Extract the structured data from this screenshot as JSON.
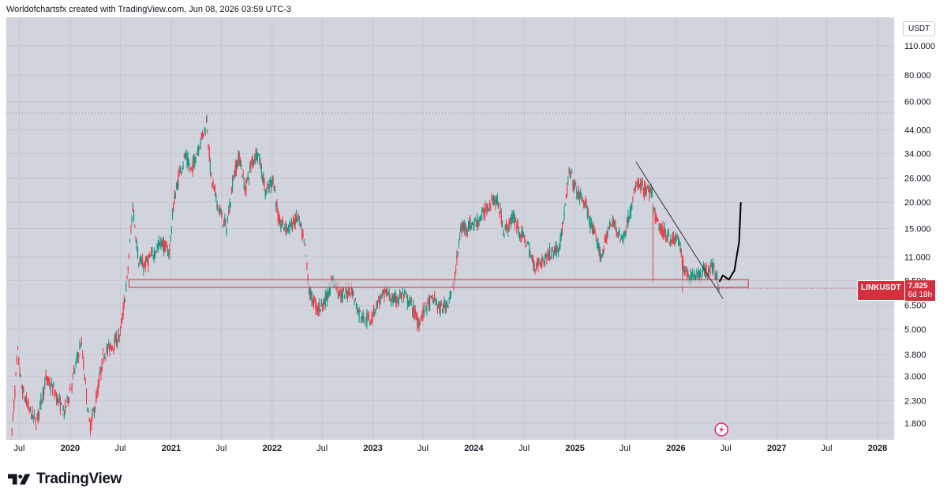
{
  "header": {
    "caption": "Worldofchartsfx created with TradingView.com, Jun 08, 2026 03:59 UTC-3"
  },
  "footer": {
    "brand": "TradingView",
    "logo_icon": "tradingview-logo-icon"
  },
  "price_scale": {
    "currency": "USDT"
  },
  "price_tag": {
    "symbol": "LINKUSDT",
    "price": "7.825",
    "countdown": "6d 18h"
  },
  "colors": {
    "plot_bg": "#d1d4dc",
    "up": "#089981",
    "down": "#f23645",
    "zone_fill": "#cbd0da",
    "zone_border": "#d32f3f",
    "trendline": "#333333",
    "projection": "#000000",
    "tag": "#d32f3f"
  },
  "chart_data": {
    "type": "candlestick",
    "symbol": "LINKUSDT",
    "scale": "log",
    "ylim": [
      1.5,
      150
    ],
    "xlim": [
      "2019-05-15",
      "2028-03-01"
    ],
    "y_ticks": [
      "110.000",
      "80.000",
      "60.000",
      "44.000",
      "34.000",
      "26.000",
      "20.000",
      "15.000",
      "11.000",
      "8.500",
      "6.500",
      "5.000",
      "3.800",
      "3.000",
      "2.300",
      "1.800"
    ],
    "x_ticks": [
      {
        "label": "Jul",
        "date": "2019-07-01"
      },
      {
        "label": "2020",
        "date": "2020-01-01"
      },
      {
        "label": "Jul",
        "date": "2020-07-01"
      },
      {
        "label": "2021",
        "date": "2021-01-01"
      },
      {
        "label": "Jul",
        "date": "2021-07-01"
      },
      {
        "label": "2022",
        "date": "2022-01-01"
      },
      {
        "label": "Jul",
        "date": "2022-07-01"
      },
      {
        "label": "2023",
        "date": "2023-01-01"
      },
      {
        "label": "Jul",
        "date": "2023-07-01"
      },
      {
        "label": "2024",
        "date": "2024-01-01"
      },
      {
        "label": "Jul",
        "date": "2024-07-01"
      },
      {
        "label": "2025",
        "date": "2025-01-01"
      },
      {
        "label": "Jul",
        "date": "2025-07-01"
      },
      {
        "label": "2026",
        "date": "2026-01-01"
      },
      {
        "label": "Jul",
        "date": "2026-07-01"
      },
      {
        "label": "2027",
        "date": "2027-01-01"
      },
      {
        "label": "Jul",
        "date": "2027-07-01"
      },
      {
        "label": "2028",
        "date": "2028-01-01"
      }
    ],
    "price_path": [
      [
        "2019-06-01",
        1.4
      ],
      [
        "2019-06-25",
        3.9
      ],
      [
        "2019-07-10",
        2.6
      ],
      [
        "2019-08-05",
        2.1
      ],
      [
        "2019-09-01",
        1.8
      ],
      [
        "2019-10-05",
        2.9
      ],
      [
        "2019-11-01",
        2.6
      ],
      [
        "2019-12-10",
        2.0
      ],
      [
        "2020-01-05",
        2.7
      ],
      [
        "2020-02-10",
        4.4
      ],
      [
        "2020-03-12",
        1.7
      ],
      [
        "2020-04-01",
        2.2
      ],
      [
        "2020-05-01",
        3.8
      ],
      [
        "2020-06-15",
        4.4
      ],
      [
        "2020-07-01",
        4.8
      ],
      [
        "2020-07-25",
        8.5
      ],
      [
        "2020-08-15",
        19.0
      ],
      [
        "2020-09-05",
        10.5
      ],
      [
        "2020-09-25",
        10.0
      ],
      [
        "2020-10-20",
        11.0
      ],
      [
        "2020-11-25",
        13.0
      ],
      [
        "2020-12-25",
        11.5
      ],
      [
        "2021-01-10",
        20.0
      ],
      [
        "2021-02-01",
        28.0
      ],
      [
        "2021-02-20",
        33.0
      ],
      [
        "2021-03-15",
        28.0
      ],
      [
        "2021-04-05",
        35.0
      ],
      [
        "2021-05-10",
        48.0
      ],
      [
        "2021-05-25",
        26.0
      ],
      [
        "2021-06-25",
        18.0
      ],
      [
        "2021-07-20",
        15.0
      ],
      [
        "2021-08-15",
        27.0
      ],
      [
        "2021-09-05",
        33.0
      ],
      [
        "2021-09-25",
        23.0
      ],
      [
        "2021-10-20",
        31.0
      ],
      [
        "2021-11-10",
        35.0
      ],
      [
        "2021-12-10",
        22.0
      ],
      [
        "2022-01-05",
        26.0
      ],
      [
        "2022-01-25",
        16.0
      ],
      [
        "2022-03-01",
        15.0
      ],
      [
        "2022-04-05",
        17.0
      ],
      [
        "2022-05-01",
        12.0
      ],
      [
        "2022-05-15",
        7.5
      ],
      [
        "2022-06-15",
        6.2
      ],
      [
        "2022-07-15",
        7.0
      ],
      [
        "2022-08-10",
        8.5
      ],
      [
        "2022-09-10",
        7.2
      ],
      [
        "2022-10-15",
        7.8
      ],
      [
        "2022-11-10",
        6.0
      ],
      [
        "2022-12-20",
        5.5
      ],
      [
        "2023-01-20",
        6.8
      ],
      [
        "2023-02-20",
        7.5
      ],
      [
        "2023-03-15",
        6.8
      ],
      [
        "2023-04-20",
        7.3
      ],
      [
        "2023-05-20",
        6.5
      ],
      [
        "2023-06-15",
        5.4
      ],
      [
        "2023-07-10",
        6.4
      ],
      [
        "2023-08-10",
        7.0
      ],
      [
        "2023-09-01",
        6.2
      ],
      [
        "2023-09-25",
        6.6
      ],
      [
        "2023-10-20",
        8.0
      ],
      [
        "2023-11-15",
        15.0
      ],
      [
        "2023-12-10",
        15.5
      ],
      [
        "2024-01-10",
        16.0
      ],
      [
        "2024-02-10",
        18.0
      ],
      [
        "2024-03-10",
        21.0
      ],
      [
        "2024-03-30",
        19.5
      ],
      [
        "2024-04-20",
        14.5
      ],
      [
        "2024-05-25",
        17.0
      ],
      [
        "2024-06-20",
        14.0
      ],
      [
        "2024-07-10",
        13.0
      ],
      [
        "2024-08-05",
        10.0
      ],
      [
        "2024-09-05",
        10.5
      ],
      [
        "2024-10-01",
        11.5
      ],
      [
        "2024-11-01",
        12.0
      ],
      [
        "2024-11-20",
        16.0
      ],
      [
        "2024-12-12",
        28.0
      ],
      [
        "2025-01-10",
        22.0
      ],
      [
        "2025-02-05",
        20.0
      ],
      [
        "2025-03-01",
        15.5
      ],
      [
        "2025-04-07",
        11.0
      ],
      [
        "2025-05-01",
        15.0
      ],
      [
        "2025-05-25",
        16.0
      ],
      [
        "2025-06-20",
        13.0
      ],
      [
        "2025-07-15",
        17.0
      ],
      [
        "2025-08-15",
        25.0
      ],
      [
        "2025-09-10",
        23.0
      ],
      [
        "2025-10-05",
        22.0
      ],
      [
        "2025-10-15",
        17.5
      ],
      [
        "2025-11-05",
        15.0
      ],
      [
        "2025-11-30",
        14.0
      ],
      [
        "2025-12-20",
        13.2
      ],
      [
        "2026-01-10",
        13.5
      ],
      [
        "2026-01-31",
        9.5
      ],
      [
        "2026-02-20",
        8.9
      ],
      [
        "2026-03-20",
        9.1
      ],
      [
        "2026-04-20",
        9.4
      ],
      [
        "2026-05-10",
        10.0
      ],
      [
        "2026-05-25",
        9.2
      ],
      [
        "2026-06-08",
        7.825
      ]
    ],
    "tick_wicks": [
      [
        "2020-08-15",
        20.0
      ],
      [
        "2021-05-10",
        52.0
      ],
      [
        "2023-06-10",
        4.9
      ],
      [
        "2025-10-10",
        8.3
      ],
      [
        "2026-01-25",
        7.5
      ]
    ],
    "ath_line": 52.9,
    "support_zone": [
      7.9,
      8.6
    ],
    "trendline": [
      [
        "2025-08-10",
        31.0
      ],
      [
        "2026-06-20",
        7.0
      ]
    ],
    "projection": [
      [
        "2026-06-08",
        8.4
      ],
      [
        "2026-06-20",
        9.0
      ],
      [
        "2026-07-12",
        8.6
      ],
      [
        "2026-08-01",
        9.5
      ],
      [
        "2026-08-18",
        13.0
      ],
      [
        "2026-08-24",
        20.0
      ]
    ]
  }
}
